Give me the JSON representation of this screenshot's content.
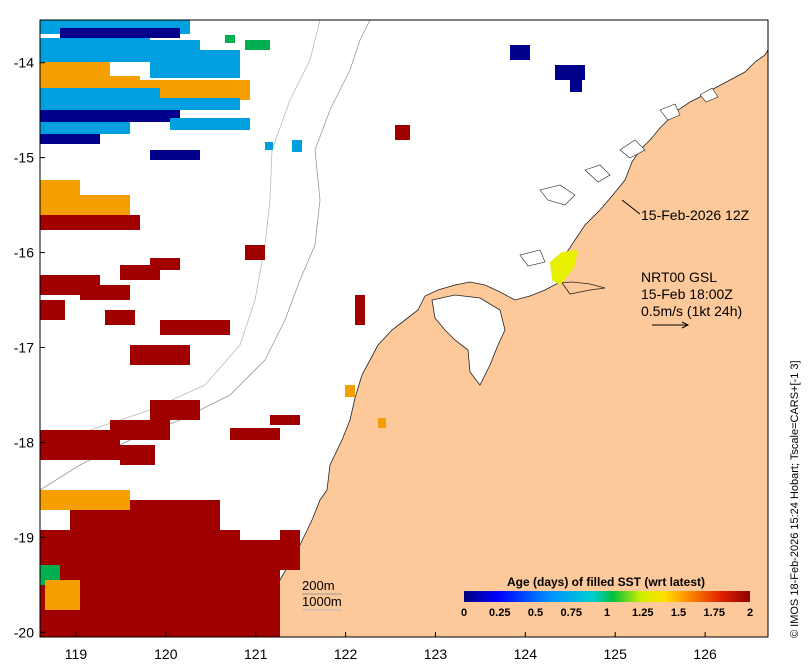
{
  "map": {
    "lon_ticks": [
      "119",
      "120",
      "121",
      "122",
      "123",
      "124",
      "125",
      "126"
    ],
    "lat_ticks": [
      "-14",
      "-15",
      "-16",
      "-17",
      "-18",
      "-19",
      "-20"
    ],
    "lon_range": [
      118.6,
      126.7
    ],
    "lat_range": [
      -20.05,
      -13.55
    ],
    "timestamp_label": "15-Feb-2026 12Z",
    "product_label": "NRT00 GSL",
    "valid_time_label": "15-Feb 18:00Z",
    "vector_scale_label": "0.5m/s (1kt 24h)",
    "contour_labels": [
      "200m",
      "1000m"
    ],
    "credit": "© IMOS 18-Feb-2026 15:24 Hobart; Tscale=CARS+[-1 3]"
  },
  "colorbar": {
    "title": "Age (days) of filled SST (wrt latest)",
    "ticks": [
      "0",
      "0.25",
      "0.5",
      "0.75",
      "1",
      "1.25",
      "1.5",
      "1.75",
      "2"
    ],
    "range": [
      0,
      2
    ]
  },
  "colors": {
    "land": "#fdc89a",
    "sea": "#ffffff",
    "age_0": "#00008c",
    "age_0_5": "#00a0e0",
    "age_1": "#00b050",
    "age_1_25": "#e6f000",
    "age_1_5": "#f5a000",
    "age_2": "#a00000"
  }
}
